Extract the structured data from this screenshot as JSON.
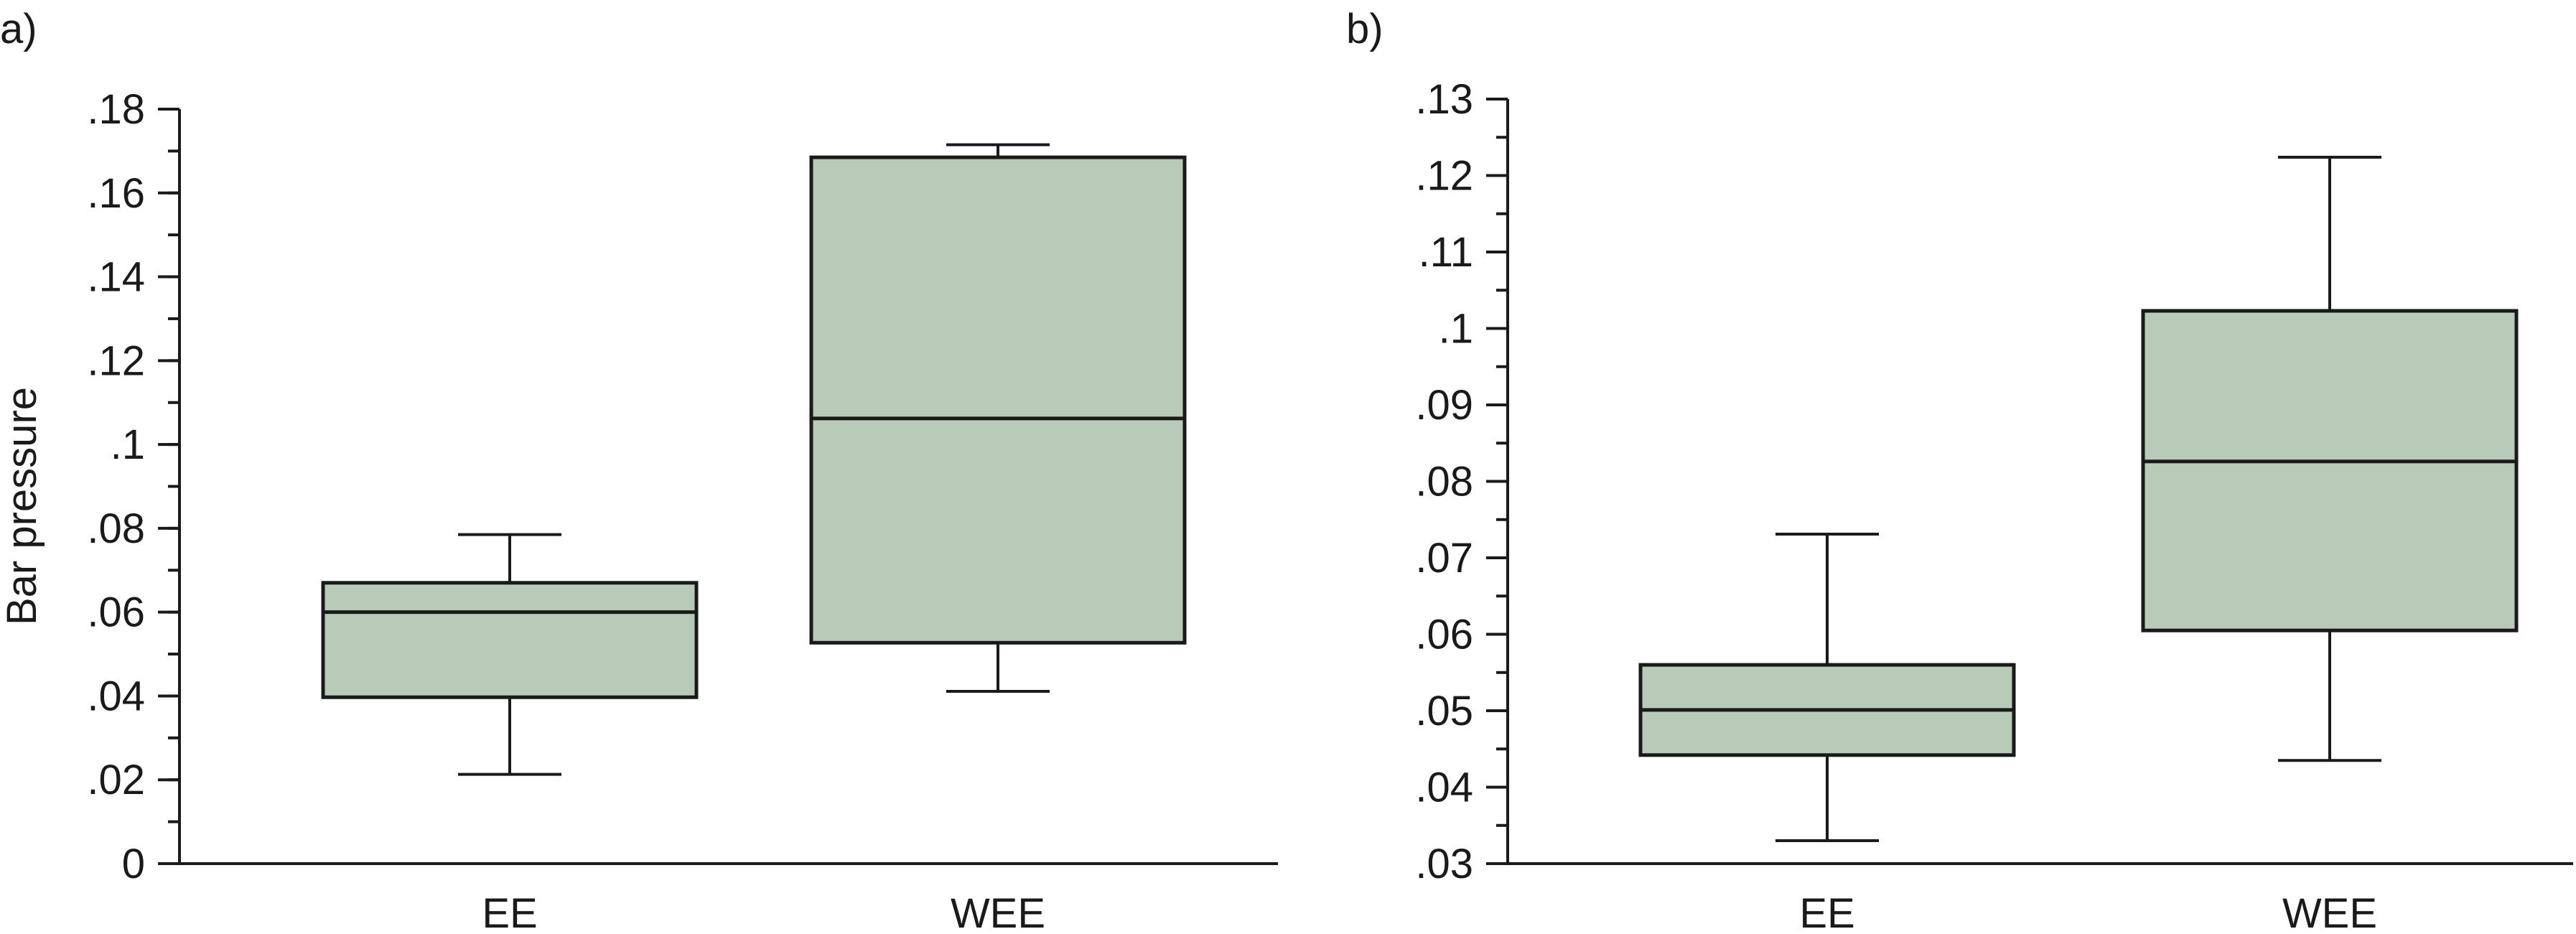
{
  "colors": {
    "box_fill": "#b8cab8",
    "stroke": "#1a1a1a",
    "background": "#ffffff"
  },
  "chart_data": [
    {
      "panel": "a)",
      "type": "boxplot",
      "ylabel": "Bar pressure",
      "xlabel": "",
      "ylim": [
        0,
        0.18
      ],
      "ytick_labels": [
        {
          "value": 0,
          "label": "0"
        },
        {
          "value": 0.02,
          "label": ".02"
        },
        {
          "value": 0.04,
          "label": ".04"
        },
        {
          "value": 0.06,
          "label": ".06"
        },
        {
          "value": 0.08,
          "label": ".08"
        },
        {
          "value": 0.1,
          "label": ".1"
        },
        {
          "value": 0.12,
          "label": ".12"
        },
        {
          "value": 0.14,
          "label": ".14"
        },
        {
          "value": 0.16,
          "label": ".16"
        },
        {
          "value": 0.18,
          "label": ".18"
        }
      ],
      "minor_tick_step": 0.01,
      "categories": [
        "EE",
        "WEE"
      ],
      "boxes": [
        {
          "category": "EE",
          "min": 0.0213,
          "q1": 0.0397,
          "median": 0.06,
          "q3": 0.067,
          "max": 0.0785
        },
        {
          "category": "WEE",
          "min": 0.0411,
          "q1": 0.0527,
          "median": 0.1062,
          "q3": 0.1685,
          "max": 0.1715
        }
      ]
    },
    {
      "panel": "b)",
      "type": "boxplot",
      "ylabel": "",
      "xlabel": "",
      "ylim": [
        0.03,
        0.13
      ],
      "ytick_labels": [
        {
          "value": 0.03,
          "label": ".03"
        },
        {
          "value": 0.04,
          "label": ".04"
        },
        {
          "value": 0.05,
          "label": ".05"
        },
        {
          "value": 0.06,
          "label": ".06"
        },
        {
          "value": 0.07,
          "label": ".07"
        },
        {
          "value": 0.08,
          "label": ".08"
        },
        {
          "value": 0.09,
          "label": ".09"
        },
        {
          "value": 0.1,
          "label": ".1"
        },
        {
          "value": 0.11,
          "label": ".11"
        },
        {
          "value": 0.12,
          "label": ".12"
        },
        {
          "value": 0.13,
          "label": ".13"
        }
      ],
      "minor_tick_step": 0.005,
      "categories": [
        "EE",
        "WEE"
      ],
      "boxes": [
        {
          "category": "EE",
          "min": 0.033,
          "q1": 0.0442,
          "median": 0.0501,
          "q3": 0.056,
          "max": 0.0731
        },
        {
          "category": "WEE",
          "min": 0.0435,
          "q1": 0.0605,
          "median": 0.0826,
          "q3": 0.1023,
          "max": 0.1224
        }
      ]
    }
  ]
}
